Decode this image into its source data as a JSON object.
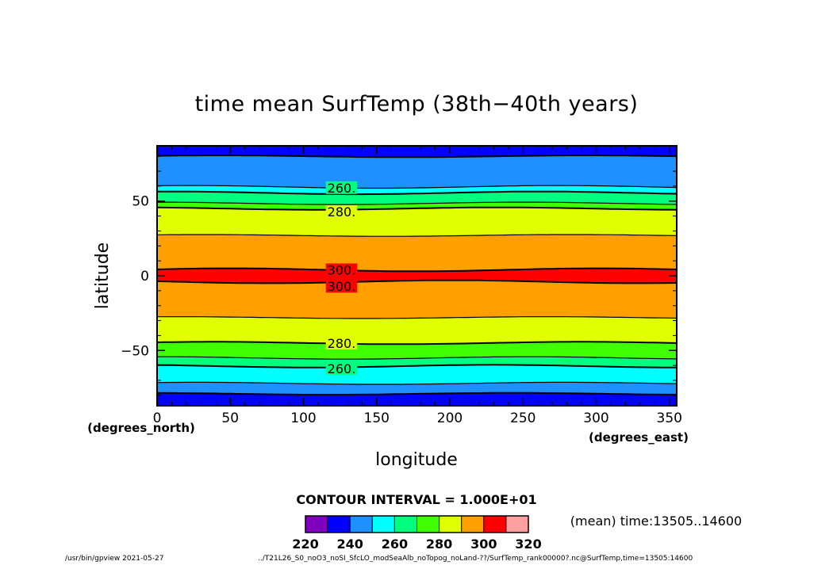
{
  "chart_data": {
    "type": "heatmap",
    "title": "time mean SurfTemp (38th−40th years)",
    "xlabel": "longitude",
    "ylabel": "latitude",
    "x_units": "(degrees_east)",
    "y_units": "(degrees_north)",
    "xlim": [
      0,
      355
    ],
    "ylim": [
      -87,
      87
    ],
    "x_ticks": [
      "0",
      "50",
      "100",
      "150",
      "200",
      "250",
      "300",
      "350"
    ],
    "y_ticks": [
      "−50",
      "0",
      "50"
    ],
    "x_tick_values": [
      0,
      50,
      100,
      150,
      200,
      250,
      300,
      350
    ],
    "y_tick_values": [
      -50,
      0,
      50
    ],
    "contour_interval_text": "CONTOUR INTERVAL = 1.000E+01",
    "mean_text": "(mean) time:13505..14600",
    "levels": [
      220,
      230,
      240,
      250,
      260,
      270,
      280,
      290,
      300,
      310,
      320
    ],
    "level_labels": [
      "220",
      "240",
      "260",
      "280",
      "300",
      "320"
    ],
    "level_label_values": [
      220,
      240,
      260,
      280,
      300,
      320
    ],
    "colors": [
      "#8000c0",
      "#0000ff",
      "#1e90ff",
      "#00ffff",
      "#00ff7f",
      "#40ff00",
      "#e0ff00",
      "#ffa000",
      "#ff0000",
      "#ffa0a0"
    ],
    "contours": [
      {
        "value": 240,
        "lat": 80.0,
        "amp": 0.6,
        "phase": 0.5
      },
      {
        "value": 250,
        "lat": 59.5,
        "amp": 0.9,
        "phase": 1.0
      },
      {
        "value": 260,
        "lat": 55.5,
        "amp": 0.9,
        "phase": 1.3
      },
      {
        "value": 270,
        "lat": 48.5,
        "amp": 0.8,
        "phase": 1.6
      },
      {
        "value": 280,
        "lat": 45.0,
        "amp": 0.8,
        "phase": 2.0
      },
      {
        "value": 290,
        "lat": 27.0,
        "amp": 0.6,
        "phase": 0.8
      },
      {
        "value": 300,
        "lat": 4.0,
        "amp": 1.0,
        "phase": 0.3
      },
      {
        "value": 300,
        "lat": -4.0,
        "amp": 1.0,
        "phase": 2.8
      },
      {
        "value": 290,
        "lat": -28.0,
        "amp": 0.6,
        "phase": 1.2
      },
      {
        "value": 280,
        "lat": -45.0,
        "amp": 0.8,
        "phase": 0.6
      },
      {
        "value": 270,
        "lat": -55.0,
        "amp": 0.8,
        "phase": 1.5
      },
      {
        "value": 260,
        "lat": -60.5,
        "amp": 0.9,
        "phase": 2.1
      },
      {
        "value": 250,
        "lat": -72.0,
        "amp": 0.7,
        "phase": 0.9
      },
      {
        "value": 240,
        "lat": -79.0,
        "amp": 0.6,
        "phase": 1.8
      }
    ],
    "contour_labels": [
      {
        "text": "260.",
        "lon": 126,
        "lat": 59
      },
      {
        "text": "280.",
        "lon": 126,
        "lat": 43
      },
      {
        "text": "300.",
        "lon": 126,
        "lat": 4
      },
      {
        "text": "300.",
        "lon": 126,
        "lat": -7
      },
      {
        "text": "280.",
        "lon": 126,
        "lat": -45
      },
      {
        "text": "260.",
        "lon": 126,
        "lat": -62
      }
    ]
  },
  "footer": {
    "left": "/usr/bin/gpview  2021-05-27",
    "right": "../T21L26_S0_noO3_noSI_SfcLO_modSeaAlb_noTopog_noLand-??/SurfTemp_rank00000?.nc@SurfTemp,time=13505:14600"
  }
}
